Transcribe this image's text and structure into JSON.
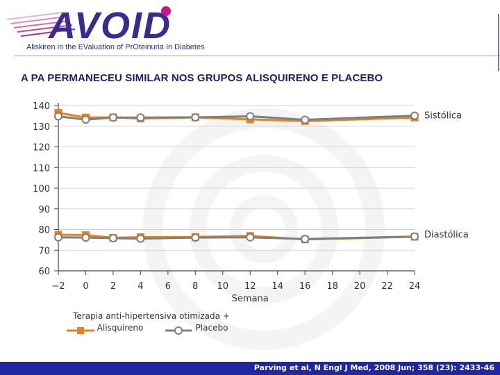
{
  "header": {
    "logo_text": "AVOID",
    "subtitle": "Aliskiren in the EValuation of PrOteinuria In Diabetes"
  },
  "slide_title": "A PA PERMANECEU SIMILAR NOS GRUPOS ALISQUIRENO E PLACEBO",
  "footer": {
    "citation": "Parving et al, N Engl J Med, 2008 Jun; 358 (23): 2433-46"
  },
  "colors": {
    "aliskiren": "#e8821e",
    "placebo": "#7f7f7f",
    "logo_purple": "#3b2b8f",
    "footer_bg": "#1f27a3"
  },
  "chart_data": {
    "type": "line",
    "xlabel": "Semana",
    "ylabel": "",
    "x": [
      -2,
      0,
      2,
      4,
      8,
      12,
      16,
      24
    ],
    "xticks": [
      "−2",
      "0",
      "2",
      "4",
      "6",
      "8",
      "10",
      "12",
      "14",
      "16",
      "18",
      "20",
      "22",
      "24"
    ],
    "xtick_values": [
      -2,
      0,
      2,
      4,
      6,
      8,
      10,
      12,
      14,
      16,
      18,
      20,
      22,
      24
    ],
    "yticks": [
      60,
      70,
      80,
      90,
      100,
      110,
      120,
      130,
      140
    ],
    "ylim": [
      60,
      140
    ],
    "xlim": [
      -2,
      24
    ],
    "legend_title": "Terapia anti-hipertensiva otimizada +",
    "legend_position": "bottom-left",
    "groups": [
      {
        "label": "Sistólica",
        "series": [
          {
            "name": "Alisquireno",
            "values": [
              136.5,
              134.2,
              134.3,
              133.7,
              134.3,
              133.3,
              132.5,
              134.2
            ]
          },
          {
            "name": "Placebo",
            "values": [
              134.8,
              133.2,
              134.2,
              134.2,
              134.3,
              134.8,
              133.1,
              135.1
            ]
          }
        ]
      },
      {
        "label": "Diastólica",
        "series": [
          {
            "name": "Alisquireno",
            "values": [
              77.5,
              77.3,
              76.0,
              76.3,
              76.4,
              76.9,
              75.2,
              76.5
            ]
          },
          {
            "name": "Placebo",
            "values": [
              76.2,
              76.1,
              75.8,
              75.6,
              76.1,
              76.2,
              75.4,
              76.6
            ]
          }
        ]
      }
    ],
    "legend": [
      "Alisquireno",
      "Placebo"
    ]
  }
}
